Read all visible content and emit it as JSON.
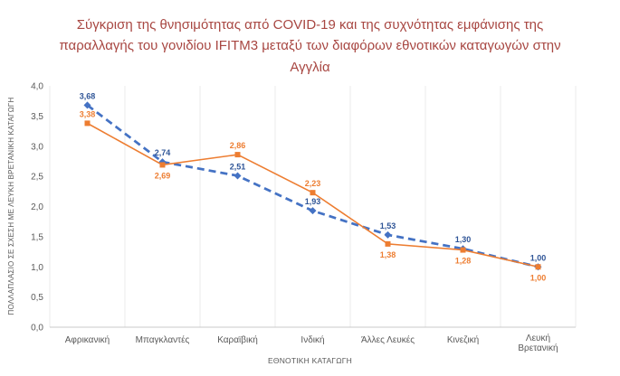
{
  "chart_data": {
    "type": "line",
    "title": "Σύγκριση της θνησιμότητας από COVID-19 και της συχνότητας εμφάνισης της παραλλαγής του γονιδίου IFITM3 μεταξύ των διαφόρων εθνοτικών καταγωγών στην Αγγλία",
    "xlabel": "ΕΘΝΟΤΙΚΗ ΚΑΤΑΓΩΓΗ",
    "ylabel": "ΠΟΛΛΑΠΛΑΣΙΟ ΣΕ ΣΧΕΣΗ ΜΕ ΛΕΥΚΗ ΒΡΕΤΑΝΙΚΗ ΚΑΤΑΓΩΓΗ",
    "categories": [
      "Αφρικανική",
      "Μπαγκλαντές",
      "Καραϊβική",
      "Ινδική",
      "Άλλες Λευκές",
      "Κινεζική",
      "Λευκή Βρετανική"
    ],
    "series": [
      {
        "name": "blue-dashed-series",
        "color": "#4472C4",
        "label_color": "#2F5597",
        "line_style": "dashed",
        "marker": "diamond",
        "values": [
          3.68,
          2.74,
          2.51,
          1.93,
          1.53,
          1.3,
          1.0
        ],
        "labels": [
          "3,68",
          "2,74",
          "2,51",
          "1,93",
          "1,53",
          "1,30",
          "1,00"
        ]
      },
      {
        "name": "orange-solid-series",
        "color": "#ED7D31",
        "label_color": "#ED7D31",
        "line_style": "solid",
        "marker": "square",
        "values": [
          3.38,
          2.69,
          2.86,
          2.23,
          1.38,
          1.28,
          1.0
        ],
        "labels": [
          "3,38",
          "2,69",
          "2,86",
          "2,23",
          "1,38",
          "1,28",
          "1,00"
        ]
      }
    ],
    "ylim": [
      0,
      4
    ],
    "yticks": [
      {
        "value": 4.0,
        "label": "4,0"
      },
      {
        "value": 3.5,
        "label": "3,5"
      },
      {
        "value": 3.0,
        "label": "3,0"
      },
      {
        "value": 2.5,
        "label": "2,5"
      },
      {
        "value": 2.0,
        "label": "2,0"
      },
      {
        "value": 1.5,
        "label": "1,5"
      },
      {
        "value": 1.0,
        "label": "1,0"
      },
      {
        "value": 0.5,
        "label": "0,5"
      },
      {
        "value": 0.0,
        "label": "0,0"
      }
    ],
    "grid": "vertical",
    "legend": "none",
    "colors": {
      "title": "#A84742",
      "axis_text": "#595959",
      "gridline": "#EBEBEB",
      "axis_line": "#C9C9C9",
      "background": "#FFFFFF"
    }
  }
}
